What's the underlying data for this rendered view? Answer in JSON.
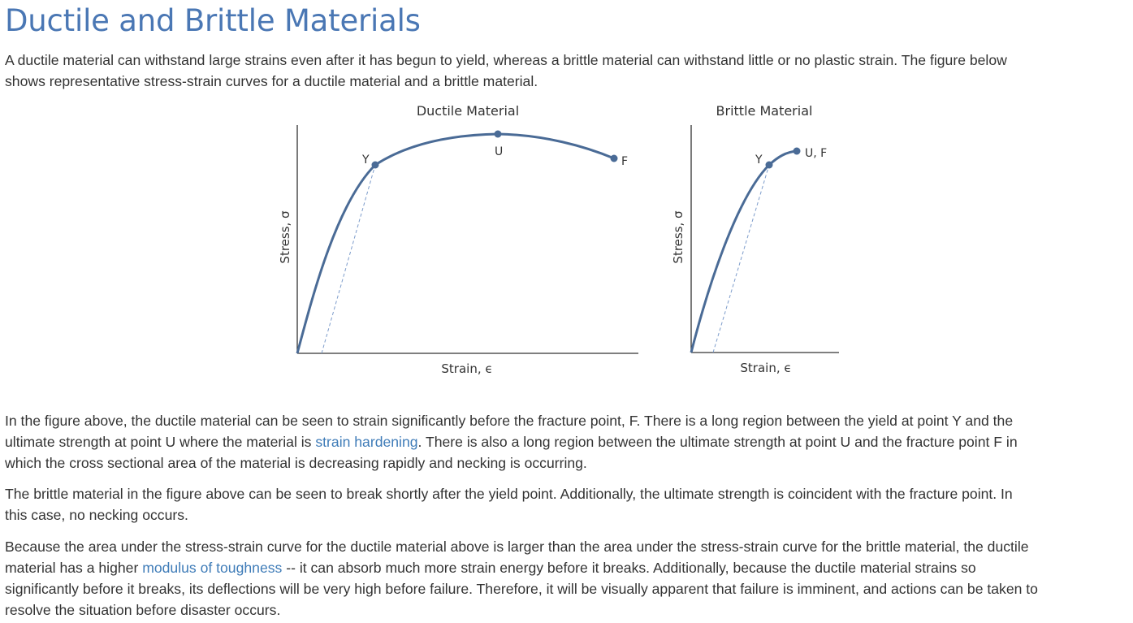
{
  "heading": "Ductile and Brittle Materials",
  "intro": {
    "line1": "A ductile material can withstand large strains even after it has begun to yield, whereas a brittle material can withstand little or no plastic strain. The figure below",
    "line2": "shows representative stress-strain curves for a ductile material and a brittle material."
  },
  "figure": {
    "ductile": {
      "title": "Ductile Material",
      "xlabel": "Strain, ϵ",
      "ylabel": "Stress, σ",
      "points": {
        "yield": "Y",
        "ultimate": "U",
        "fracture": "F"
      }
    },
    "brittle": {
      "title": "Brittle Material",
      "xlabel": "Strain, ϵ",
      "ylabel": "Stress, σ",
      "points": {
        "yield": "Y",
        "ultimate_fracture": "U, F"
      }
    },
    "colors": {
      "curve": "#4a6b96",
      "dashed": "#7d9ccb",
      "axis": "#333333"
    }
  },
  "paragraphs": {
    "p1": {
      "line1": "In the figure above, the ductile material can be seen to strain significantly before the fracture point, F. There is a long region between the yield at point Y and the",
      "line2_before": "ultimate strength at point U where the material is ",
      "line2_link": "strain hardening",
      "line2_after": ". There is also a long region between the ultimate strength at point U and the fracture point F in",
      "line3": "which the cross sectional area of the material is decreasing rapidly and necking is occurring."
    },
    "p2": {
      "line1": "The brittle material in the figure above can be seen to break shortly after the yield point. Additionally, the ultimate strength is coincident with the fracture point. In",
      "line2": "this case, no necking occurs."
    },
    "p3": {
      "line1": "Because the area under the stress-strain curve for the ductile material above is larger than the area under the stress-strain curve for the brittle material, the ductile",
      "line2_before": "material has a higher ",
      "line2_link": "modulus of toughness",
      "line2_after": " -- it can absorb much more strain energy before it breaks. Additionally, because the ductile material strains so",
      "line3": "significantly before it breaks, its deflections will be very high before failure. Therefore, it will be visually apparent that failure is imminent, and actions can be taken to",
      "line4": "resolve the situation before disaster occurs."
    }
  },
  "link_color": "#3f7cb8",
  "heading_color": "#4a77b4"
}
